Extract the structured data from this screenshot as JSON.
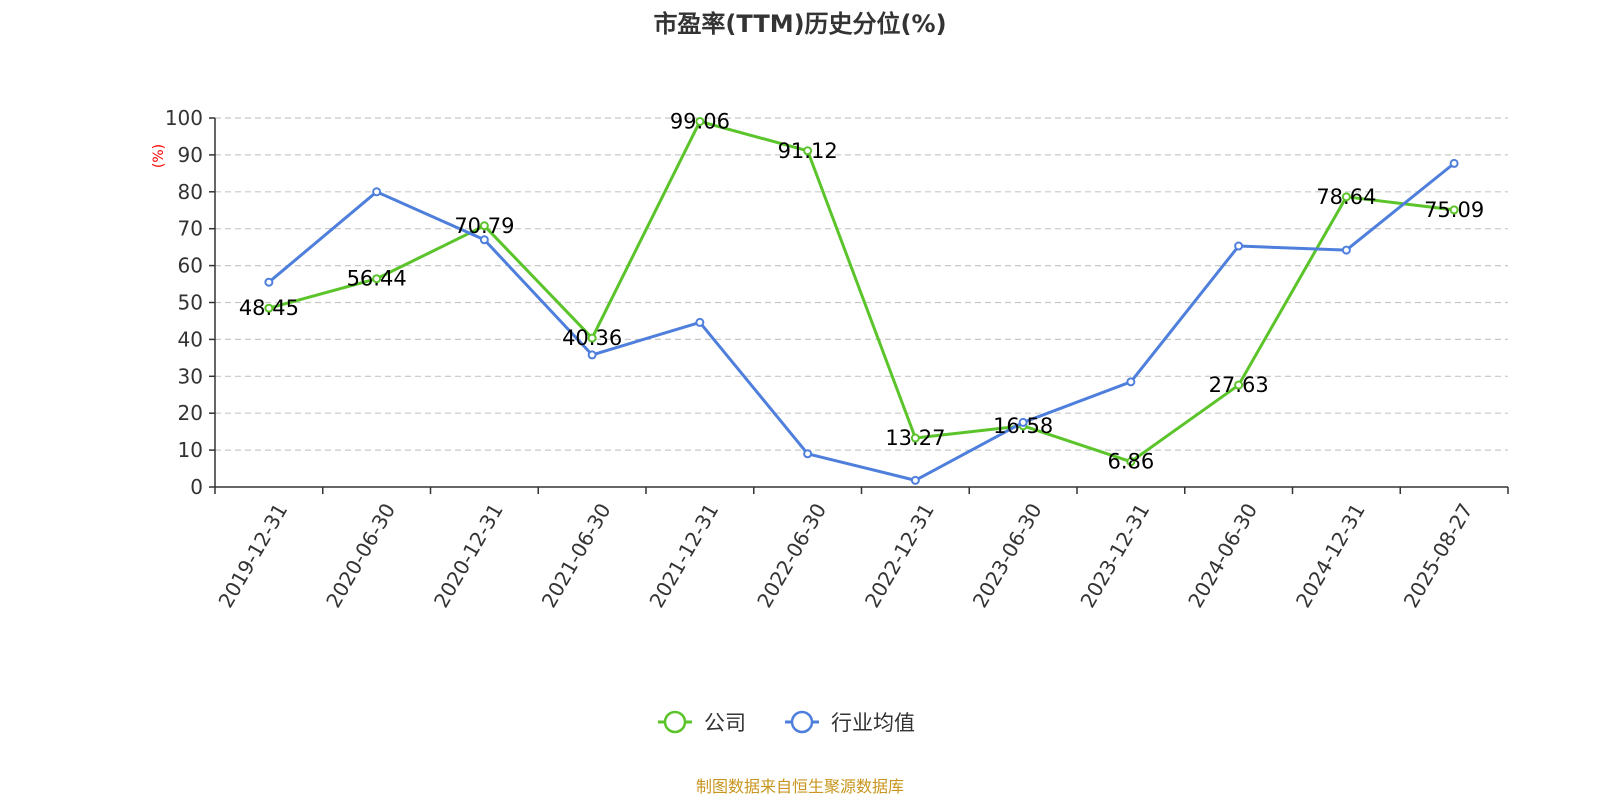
{
  "chart_data": {
    "type": "line",
    "title": "市盈率(TTM)历史分位(%)",
    "ylabel": "(%)",
    "ylim": [
      0,
      100
    ],
    "yticks": [
      0,
      10,
      20,
      30,
      40,
      50,
      60,
      70,
      80,
      90,
      100
    ],
    "categories": [
      "2019-12-31",
      "2020-06-30",
      "2020-12-31",
      "2021-06-30",
      "2021-12-31",
      "2022-06-30",
      "2022-12-31",
      "2023-06-30",
      "2023-12-31",
      "2024-06-30",
      "2024-12-31",
      "2025-08-27"
    ],
    "grid": true,
    "legend_position": "bottom-center",
    "series": [
      {
        "name": "公司",
        "color": "#5ac42a",
        "values": [
          48.45,
          56.44,
          70.79,
          40.36,
          99.06,
          91.12,
          13.27,
          16.58,
          6.86,
          27.63,
          78.64,
          75.09
        ],
        "labels": [
          "48.45",
          "56.44",
          "70.79",
          "40.36",
          "99.06",
          "91.12",
          "13.27",
          "16.58",
          "6.86",
          "27.63",
          "78.64",
          "75.09"
        ]
      },
      {
        "name": "行业均值",
        "color": "#4f7fdc",
        "values": [
          55.5,
          80.0,
          67.0,
          35.8,
          44.6,
          9.0,
          1.8,
          17.5,
          28.5,
          65.3,
          64.2,
          87.7
        ]
      }
    ]
  },
  "source": {
    "text": "制图数据来自恒生聚源数据库",
    "color": "#c8961e"
  }
}
